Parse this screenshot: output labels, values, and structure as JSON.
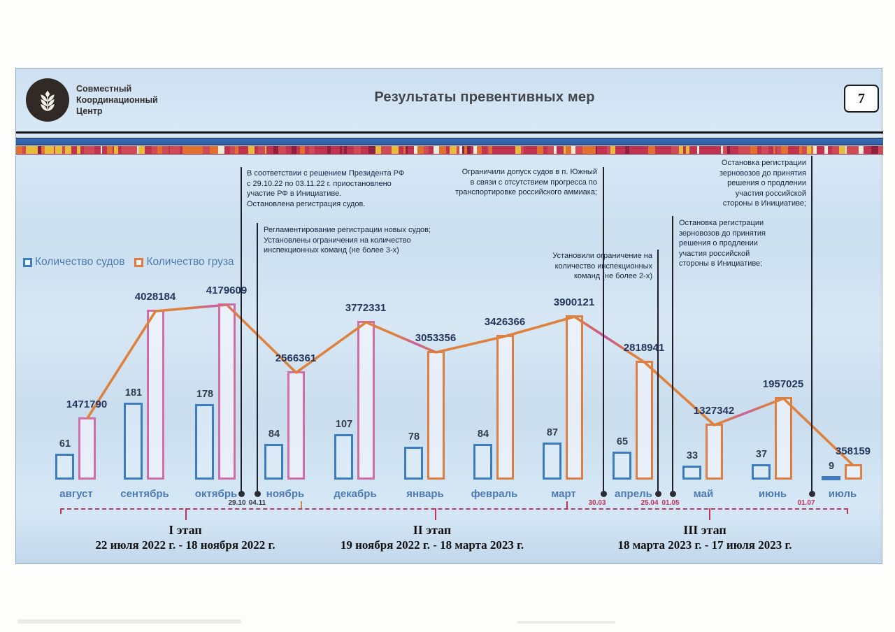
{
  "header": {
    "logo_text": "Совместный\nКоординационный\nЦентр",
    "title": "Результаты превентивных мер",
    "page_number": "7"
  },
  "legend": [
    {
      "label": "Количество судов",
      "color": "#3e7cc0"
    },
    {
      "label": "Количество груза",
      "color": "#e0793c"
    }
  ],
  "chart_data": {
    "type": "bar",
    "title": "Результаты превентивных мер",
    "categories": [
      "август",
      "сентябрь",
      "октябрь",
      "ноябрь",
      "декабрь",
      "январь",
      "февраль",
      "март",
      "апрель",
      "май",
      "июнь",
      "июль"
    ],
    "series": [
      {
        "name": "Количество судов",
        "type": "bar",
        "values": [
          61,
          181,
          178,
          84,
          107,
          78,
          84,
          87,
          65,
          33,
          37,
          9
        ],
        "color": "#3e7cc0"
      },
      {
        "name": "Количество груза",
        "type": "bar",
        "values": [
          1471790,
          4028184,
          4179609,
          2566361,
          3772331,
          3053356,
          3426366,
          3900121,
          2818941,
          1327342,
          1957025,
          358159
        ],
        "color": "#dd7f44",
        "bar_color_early": "#d06ea8",
        "bar_color_late": "#dd7f44",
        "early_count": 5,
        "line_color": "#dd813c",
        "line_accent": "#c95f9e"
      }
    ],
    "ylim": [
      0,
      4179609
    ],
    "grid": false,
    "legend_position": "left-middle",
    "annotations": [
      {
        "text": "В соответствии с решением Президента РФ\nс 29.10.22 по 03.11.22 г. приостановлено\nучастие РФ в Инициативе.\nОстановлена регистрация судов.",
        "date": "29.10",
        "date_color": "#3a3440"
      },
      {
        "text": "Регламентирование регистрации новых судов;\nУстановлены ограничения на количество\nинспекционных команд (не более 3-х)",
        "date": "04.11",
        "date_color": "#3a3440"
      },
      {
        "text": "Ограничили допуск судов в п. Южный\nв связи с отсутствием прогресса по\nтранспортировке российского аммиака;",
        "date": "30.03",
        "date_color": "#c12f57"
      },
      {
        "text": "Установили ограничение на\nколичество инспекционных\nкоманд (не более 2-х)",
        "date": "25.04",
        "date_color": "#c12f57"
      },
      {
        "text": "Остановка регистрации\nзерновозов до принятия\nрешения о продлении\nучастия российской\nстороны в Инициативе;",
        "date": "01.07",
        "date_color": "#c12f57"
      },
      {
        "text": "Остановка регистрации\nзерновозов до принятия\nрешения о продлении\nучастия российской\nстороны в Инициативе;",
        "date": "01.05",
        "date_color": "#c12f57"
      }
    ],
    "stages": [
      {
        "name": "I этап",
        "dates": "22 июля 2022 г. - 18 ноября 2022 г."
      },
      {
        "name": "II этап",
        "dates": "19 ноября 2022 г. - 18 марта 2023 г."
      },
      {
        "name": "III этап",
        "dates": "18 марта 2023 г. - 17 июля 2023 г."
      }
    ],
    "timeline_color": "#b23b5c"
  }
}
